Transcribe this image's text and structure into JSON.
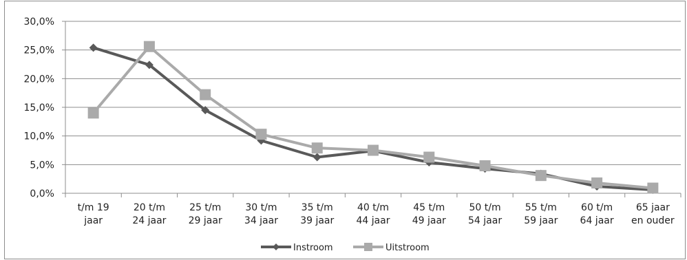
{
  "chart_data": {
    "type": "line",
    "categories": [
      [
        "t/m 19",
        "jaar"
      ],
      [
        "20 t/m",
        "24 jaar"
      ],
      [
        "25 t/m",
        "29 jaar"
      ],
      [
        "30 t/m",
        "34 jaar"
      ],
      [
        "35 t/m",
        "39 jaar"
      ],
      [
        "40 t/m",
        "44 jaar"
      ],
      [
        "45 t/m",
        "49 jaar"
      ],
      [
        "50 t/m",
        "54 jaar"
      ],
      [
        "55 t/m",
        "59 jaar"
      ],
      [
        "60 t/m",
        "64 jaar"
      ],
      [
        "65 jaar",
        "en ouder"
      ]
    ],
    "series": [
      {
        "name": "Instroom",
        "color": "#595959",
        "marker": "diamond",
        "values": [
          25.4,
          22.4,
          14.5,
          9.2,
          6.3,
          7.4,
          5.4,
          4.3,
          3.4,
          1.2,
          0.6
        ]
      },
      {
        "name": "Uitstroom",
        "color": "#aaaaaa",
        "marker": "square",
        "values": [
          14.0,
          25.6,
          17.2,
          10.3,
          7.9,
          7.5,
          6.3,
          4.8,
          3.1,
          1.8,
          0.9
        ]
      }
    ],
    "ylim": [
      0,
      30
    ],
    "yticks": [
      "0,0%",
      "5,0%",
      "10,0%",
      "15,0%",
      "20,0%",
      "25,0%",
      "30,0%"
    ],
    "grid": true,
    "legend_position": "bottom"
  }
}
